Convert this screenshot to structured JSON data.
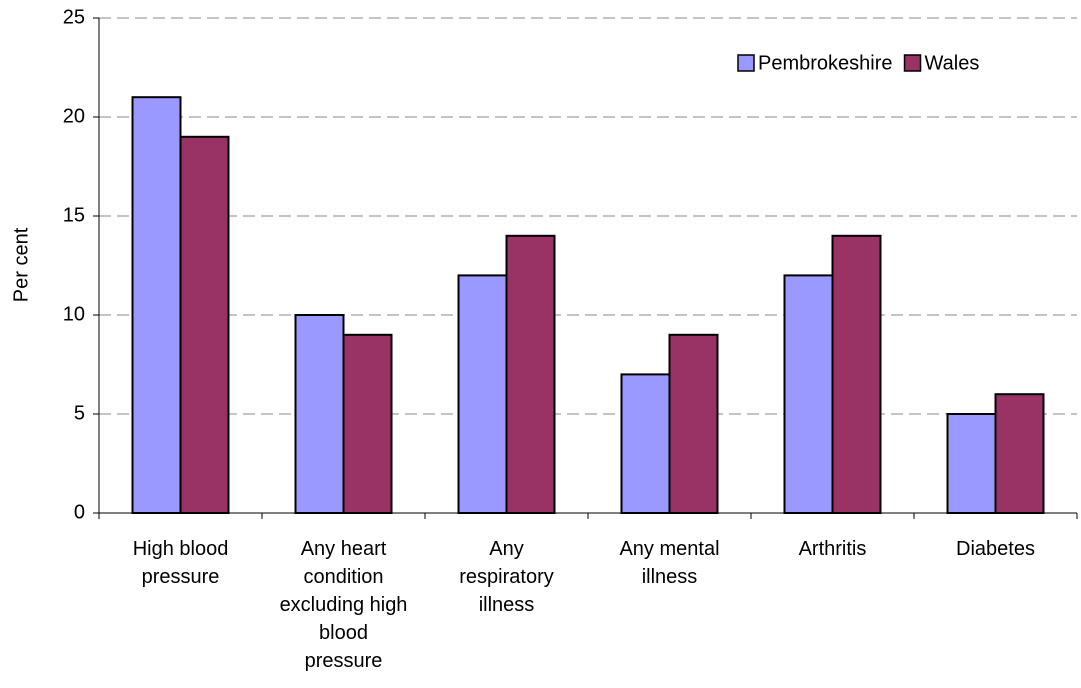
{
  "chart_data": {
    "type": "bar",
    "y_label": "Per cent",
    "categories": [
      "High blood pressure",
      "Any heart condition excluding high blood pressure",
      "Any respiratory illness",
      "Any mental illness",
      "Arthritis",
      "Diabetes"
    ],
    "series": [
      {
        "name": "Pembrokeshire",
        "color": "#9999ff",
        "values": [
          21,
          10,
          12,
          7,
          12,
          5
        ]
      },
      {
        "name": "Wales",
        "color": "#993366",
        "values": [
          19,
          9,
          14,
          9,
          14,
          6
        ]
      }
    ],
    "ylim": [
      0,
      25
    ],
    "yticks": [
      0,
      5,
      10,
      15,
      20,
      25
    ],
    "grid": true,
    "legend": "top-right"
  }
}
